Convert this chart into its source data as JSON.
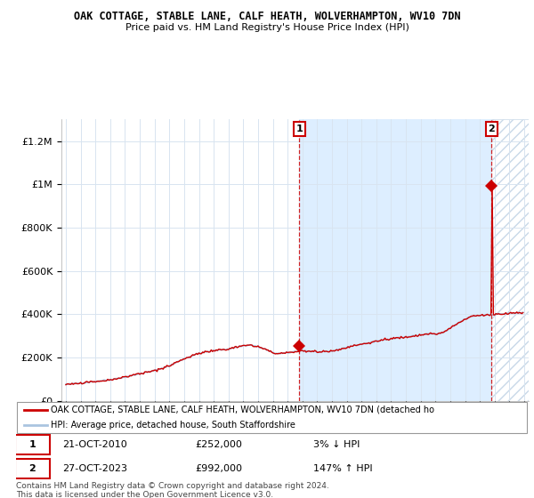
{
  "title": "OAK COTTAGE, STABLE LANE, CALF HEATH, WOLVERHAMPTON, WV10 7DN",
  "subtitle": "Price paid vs. HM Land Registry's House Price Index (HPI)",
  "hpi_label": "HPI: Average price, detached house, South Staffordshire",
  "property_label": "OAK COTTAGE, STABLE LANE, CALF HEATH, WOLVERHAMPTON, WV10 7DN (detached ho",
  "footer": "Contains HM Land Registry data © Crown copyright and database right 2024.\nThis data is licensed under the Open Government Licence v3.0.",
  "transaction1_date": "21-OCT-2010",
  "transaction1_price": 252000,
  "transaction1_x": 2010.8,
  "transaction1_label": "3% ↓ HPI",
  "transaction2_date": "27-OCT-2023",
  "transaction2_price": 992000,
  "transaction2_x": 2023.8,
  "transaction2_label": "147% ↑ HPI",
  "hpi_color": "#aac4e0",
  "property_color": "#cc0000",
  "point_color": "#cc0000",
  "grid_color": "#d8e4f0",
  "background_color": "#ffffff",
  "shade_color": "#ddeeff",
  "hatch_color": "#c8d8e8",
  "ylim_max": 1300000,
  "ylim_min": 0,
  "xlim_min": 1994.7,
  "xlim_max": 2026.3
}
